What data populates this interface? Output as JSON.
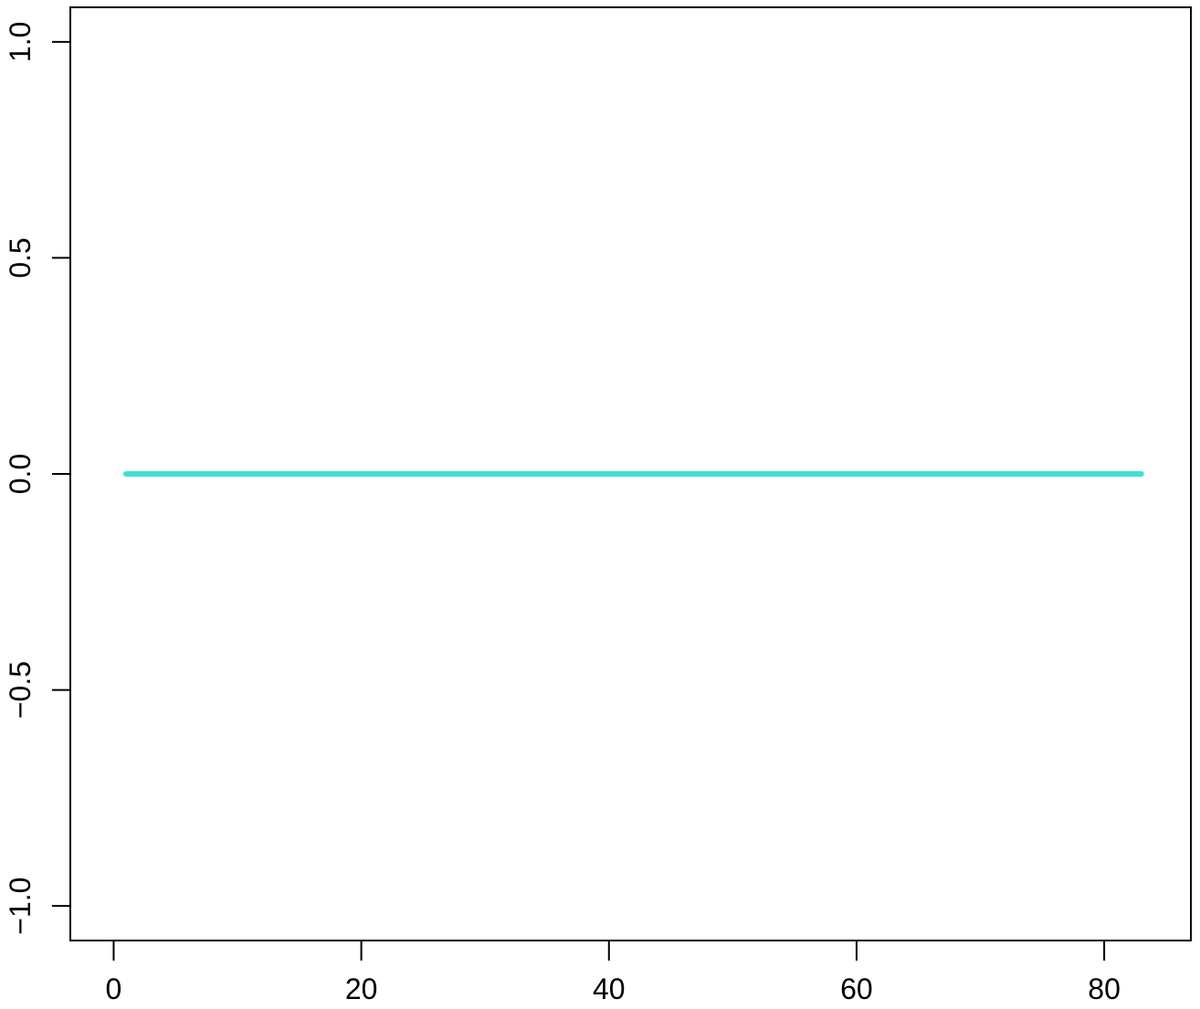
{
  "chart_data": {
    "type": "line",
    "title": "",
    "xlabel": "",
    "ylabel": "",
    "xlim": [
      -3.5,
      87
    ],
    "ylim": [
      -1.08,
      1.08
    ],
    "x_ticks": [
      0,
      20,
      40,
      60,
      80
    ],
    "x_tick_labels": [
      "0",
      "20",
      "40",
      "60",
      "80"
    ],
    "y_ticks": [
      -1.0,
      -0.5,
      0.0,
      0.5,
      1.0
    ],
    "y_tick_labels": [
      "−1.0",
      "−0.5",
      "0.0",
      "0.5",
      "1.0"
    ],
    "grid": false,
    "legend": "none",
    "series": [
      {
        "color": "#40e0d0",
        "x": [
          1,
          83
        ],
        "y": [
          0,
          0
        ]
      }
    ]
  }
}
